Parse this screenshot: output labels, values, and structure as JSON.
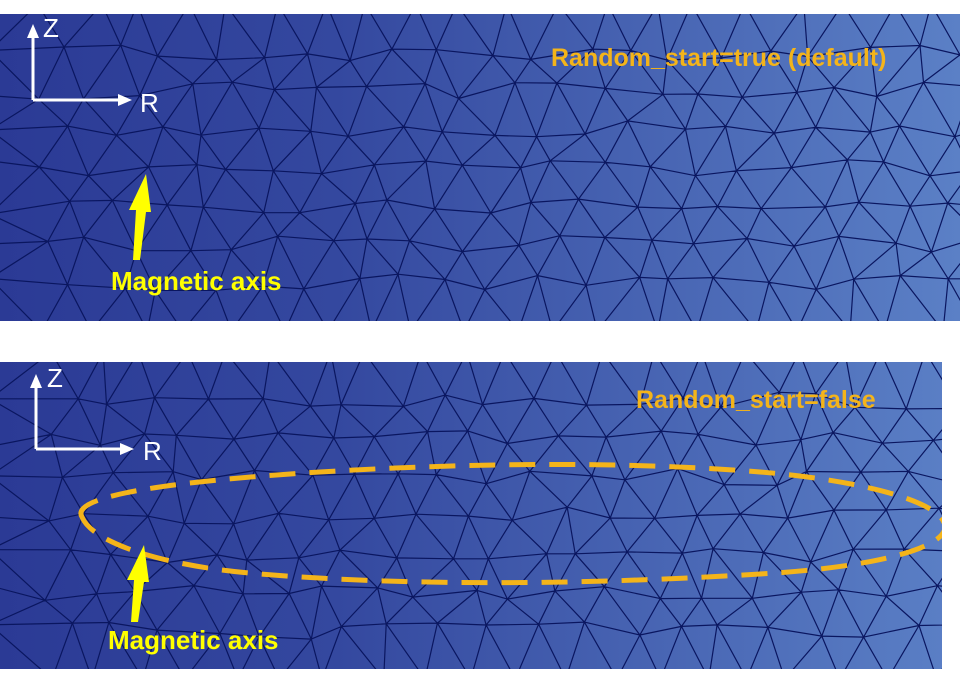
{
  "panels": [
    {
      "mode_label": "Random_start=true (default)",
      "axis_vertical": "Z",
      "axis_horizontal": "R",
      "callout": "Magnetic axis"
    },
    {
      "mode_label": "Random_start=false",
      "axis_vertical": "Z",
      "axis_horizontal": "R",
      "callout": "Magnetic axis"
    }
  ],
  "colors": {
    "mesh_dark": "#2a3a94",
    "mesh_light": "#5a7ec6",
    "mesh_lines": "#0a1660",
    "highlight": "#f4b41a",
    "arrow": "#ffff00",
    "axis": "#ffffff"
  }
}
